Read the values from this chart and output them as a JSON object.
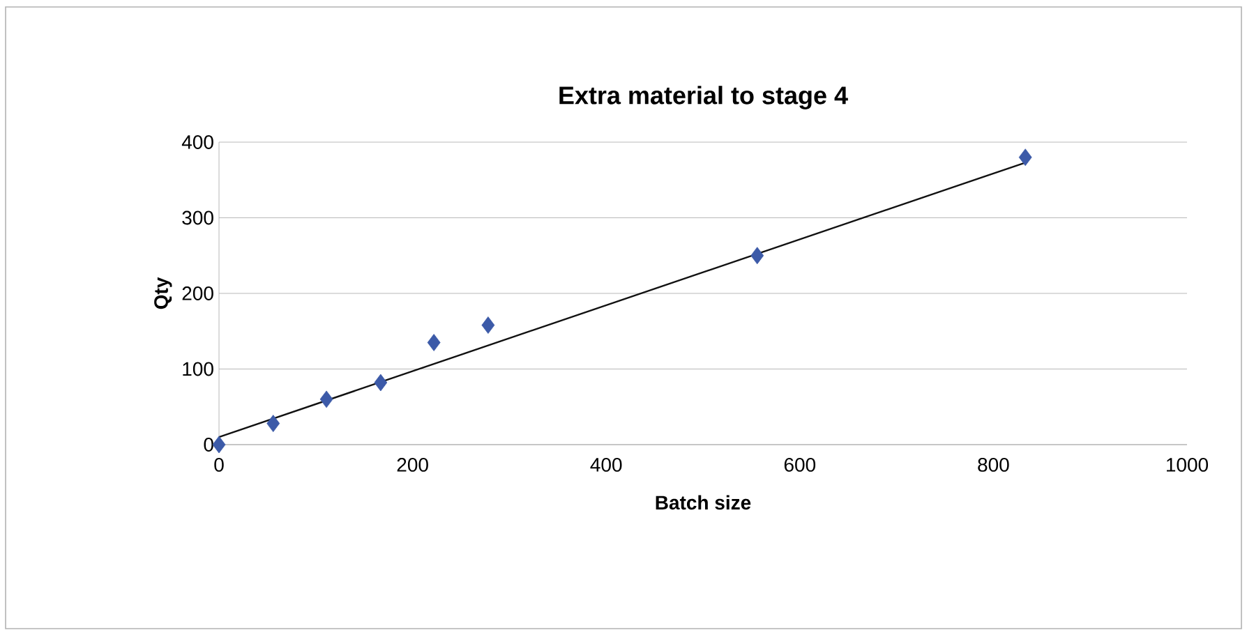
{
  "chart_data": {
    "type": "scatter",
    "title": "Extra material to stage 4",
    "xlabel": "Batch size",
    "ylabel": "Qty",
    "xlim": [
      0,
      1000
    ],
    "xticks": [
      0,
      200,
      400,
      600,
      800,
      1000
    ],
    "ylim": [
      0,
      400
    ],
    "yticks": [
      0,
      100,
      200,
      300,
      400
    ],
    "grid": "y",
    "series": [
      {
        "color": "#3c5aa8",
        "marker": "diamond",
        "x": [
          0,
          56,
          111,
          167,
          222,
          278,
          556,
          833
        ],
        "values": [
          0,
          28,
          60,
          82,
          135,
          158,
          250,
          380
        ]
      },
      {
        "type": "line",
        "color": "#111111",
        "marker": "none",
        "line_style": "solid",
        "x": [
          0,
          833
        ],
        "values": [
          10,
          373
        ]
      }
    ]
  }
}
